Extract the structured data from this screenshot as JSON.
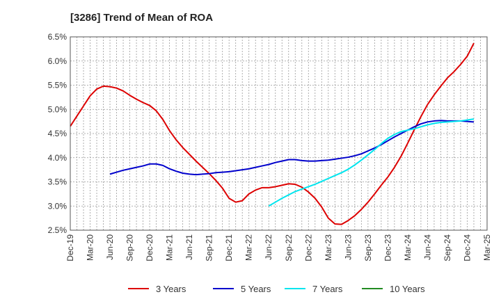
{
  "chart_data": {
    "type": "line",
    "title": "[3286]  Trend of Mean of ROA",
    "xlabel": "",
    "ylabel": "",
    "ylim": [
      2.5,
      6.5
    ],
    "ytick_values": [
      2.5,
      3.0,
      3.5,
      4.0,
      4.5,
      5.0,
      5.5,
      6.0,
      6.5
    ],
    "ytick_labels": [
      "2.5%",
      "3.0%",
      "3.5%",
      "4.0%",
      "4.5%",
      "5.0%",
      "5.5%",
      "6.0%",
      "6.5%"
    ],
    "x_categories": [
      "Dec-19",
      "Mar-20",
      "Jun-20",
      "Sep-20",
      "Dec-20",
      "Mar-21",
      "Jun-21",
      "Sep-21",
      "Dec-21",
      "Mar-22",
      "Jun-22",
      "Sep-22",
      "Dec-22",
      "Mar-23",
      "Jun-23",
      "Sep-23",
      "Dec-23",
      "Mar-24",
      "Jun-24",
      "Sep-24",
      "Dec-24",
      "Mar-25"
    ],
    "grid": true,
    "legend_position": "bottom",
    "series": [
      {
        "name": "3 Years",
        "color": "#dd0000",
        "points": [
          [
            "Dec-19",
            4.65
          ],
          [
            "Jan-20",
            4.86
          ],
          [
            "Feb-20",
            5.07
          ],
          [
            "Mar-20",
            5.28
          ],
          [
            "Apr-20",
            5.42
          ],
          [
            "May-20",
            5.48
          ],
          [
            "Jun-20",
            5.47
          ],
          [
            "Jul-20",
            5.44
          ],
          [
            "Aug-20",
            5.38
          ],
          [
            "Sep-20",
            5.29
          ],
          [
            "Oct-20",
            5.21
          ],
          [
            "Nov-20",
            5.14
          ],
          [
            "Dec-20",
            5.08
          ],
          [
            "Jan-21",
            4.97
          ],
          [
            "Feb-21",
            4.79
          ],
          [
            "Mar-21",
            4.56
          ],
          [
            "Apr-21",
            4.37
          ],
          [
            "May-21",
            4.21
          ],
          [
            "Jun-21",
            4.07
          ],
          [
            "Jul-21",
            3.93
          ],
          [
            "Aug-21",
            3.8
          ],
          [
            "Sep-21",
            3.67
          ],
          [
            "Oct-21",
            3.53
          ],
          [
            "Nov-21",
            3.37
          ],
          [
            "Dec-21",
            3.16
          ],
          [
            "Jan-22",
            3.08
          ],
          [
            "Feb-22",
            3.11
          ],
          [
            "Mar-22",
            3.25
          ],
          [
            "Apr-22",
            3.33
          ],
          [
            "May-22",
            3.38
          ],
          [
            "Jun-22",
            3.38
          ],
          [
            "Jul-22",
            3.4
          ],
          [
            "Aug-22",
            3.43
          ],
          [
            "Sep-22",
            3.46
          ],
          [
            "Oct-22",
            3.45
          ],
          [
            "Nov-22",
            3.39
          ],
          [
            "Dec-22",
            3.29
          ],
          [
            "Jan-23",
            3.16
          ],
          [
            "Feb-23",
            2.98
          ],
          [
            "Mar-23",
            2.75
          ],
          [
            "Apr-23",
            2.63
          ],
          [
            "May-23",
            2.62
          ],
          [
            "Jun-23",
            2.7
          ],
          [
            "Jul-23",
            2.8
          ],
          [
            "Aug-23",
            2.93
          ],
          [
            "Sep-23",
            3.08
          ],
          [
            "Oct-23",
            3.25
          ],
          [
            "Nov-23",
            3.43
          ],
          [
            "Dec-23",
            3.6
          ],
          [
            "Jan-24",
            3.8
          ],
          [
            "Feb-24",
            4.03
          ],
          [
            "Mar-24",
            4.3
          ],
          [
            "Apr-24",
            4.58
          ],
          [
            "May-24",
            4.85
          ],
          [
            "Jun-24",
            5.1
          ],
          [
            "Jul-24",
            5.3
          ],
          [
            "Aug-24",
            5.48
          ],
          [
            "Sep-24",
            5.65
          ],
          [
            "Oct-24",
            5.78
          ],
          [
            "Nov-24",
            5.93
          ],
          [
            "Dec-24",
            6.1
          ],
          [
            "Jan-25",
            6.37
          ]
        ]
      },
      {
        "name": "5 Years",
        "color": "#0000cc",
        "points": [
          [
            "Jun-20",
            3.66
          ],
          [
            "Jul-20",
            3.7
          ],
          [
            "Aug-20",
            3.74
          ],
          [
            "Sep-20",
            3.77
          ],
          [
            "Oct-20",
            3.8
          ],
          [
            "Nov-20",
            3.83
          ],
          [
            "Dec-20",
            3.87
          ],
          [
            "Jan-21",
            3.87
          ],
          [
            "Feb-21",
            3.84
          ],
          [
            "Mar-21",
            3.77
          ],
          [
            "Apr-21",
            3.72
          ],
          [
            "May-21",
            3.68
          ],
          [
            "Jun-21",
            3.66
          ],
          [
            "Jul-21",
            3.65
          ],
          [
            "Aug-21",
            3.66
          ],
          [
            "Sep-21",
            3.67
          ],
          [
            "Oct-21",
            3.69
          ],
          [
            "Nov-21",
            3.7
          ],
          [
            "Dec-21",
            3.71
          ],
          [
            "Jan-22",
            3.73
          ],
          [
            "Feb-22",
            3.75
          ],
          [
            "Mar-22",
            3.77
          ],
          [
            "Apr-22",
            3.8
          ],
          [
            "May-22",
            3.83
          ],
          [
            "Jun-22",
            3.86
          ],
          [
            "Jul-22",
            3.9
          ],
          [
            "Aug-22",
            3.93
          ],
          [
            "Sep-22",
            3.96
          ],
          [
            "Oct-22",
            3.96
          ],
          [
            "Nov-22",
            3.94
          ],
          [
            "Dec-22",
            3.93
          ],
          [
            "Jan-23",
            3.93
          ],
          [
            "Feb-23",
            3.94
          ],
          [
            "Mar-23",
            3.95
          ],
          [
            "Apr-23",
            3.97
          ],
          [
            "May-23",
            3.99
          ],
          [
            "Jun-23",
            4.01
          ],
          [
            "Jul-23",
            4.04
          ],
          [
            "Aug-23",
            4.08
          ],
          [
            "Sep-23",
            4.14
          ],
          [
            "Oct-23",
            4.2
          ],
          [
            "Nov-23",
            4.27
          ],
          [
            "Dec-23",
            4.35
          ],
          [
            "Jan-24",
            4.43
          ],
          [
            "Feb-24",
            4.5
          ],
          [
            "Mar-24",
            4.57
          ],
          [
            "Apr-24",
            4.64
          ],
          [
            "May-24",
            4.7
          ],
          [
            "Jun-24",
            4.74
          ],
          [
            "Jul-24",
            4.76
          ],
          [
            "Aug-24",
            4.77
          ],
          [
            "Sep-24",
            4.76
          ],
          [
            "Oct-24",
            4.76
          ],
          [
            "Nov-24",
            4.76
          ],
          [
            "Dec-24",
            4.75
          ],
          [
            "Jan-25",
            4.74
          ]
        ]
      },
      {
        "name": "7 Years",
        "color": "#00e5ee",
        "points": [
          [
            "Jun-22",
            3.0
          ],
          [
            "Jul-22",
            3.08
          ],
          [
            "Aug-22",
            3.16
          ],
          [
            "Sep-22",
            3.23
          ],
          [
            "Oct-22",
            3.3
          ],
          [
            "Nov-22",
            3.35
          ],
          [
            "Dec-22",
            3.4
          ],
          [
            "Jan-23",
            3.45
          ],
          [
            "Feb-23",
            3.51
          ],
          [
            "Mar-23",
            3.57
          ],
          [
            "Apr-23",
            3.63
          ],
          [
            "May-23",
            3.69
          ],
          [
            "Jun-23",
            3.76
          ],
          [
            "Jul-23",
            3.85
          ],
          [
            "Aug-23",
            3.95
          ],
          [
            "Sep-23",
            4.06
          ],
          [
            "Oct-23",
            4.17
          ],
          [
            "Nov-23",
            4.29
          ],
          [
            "Dec-23",
            4.4
          ],
          [
            "Jan-24",
            4.48
          ],
          [
            "Feb-24",
            4.54
          ],
          [
            "Mar-24",
            4.57
          ],
          [
            "Apr-24",
            4.6
          ],
          [
            "May-24",
            4.64
          ],
          [
            "Jun-24",
            4.68
          ],
          [
            "Jul-24",
            4.71
          ],
          [
            "Aug-24",
            4.73
          ],
          [
            "Sep-24",
            4.74
          ],
          [
            "Oct-24",
            4.75
          ],
          [
            "Nov-24",
            4.76
          ],
          [
            "Dec-24",
            4.78
          ],
          [
            "Jan-25",
            4.8
          ]
        ]
      },
      {
        "name": "10 Years",
        "color": "#228b22",
        "points": []
      }
    ]
  }
}
